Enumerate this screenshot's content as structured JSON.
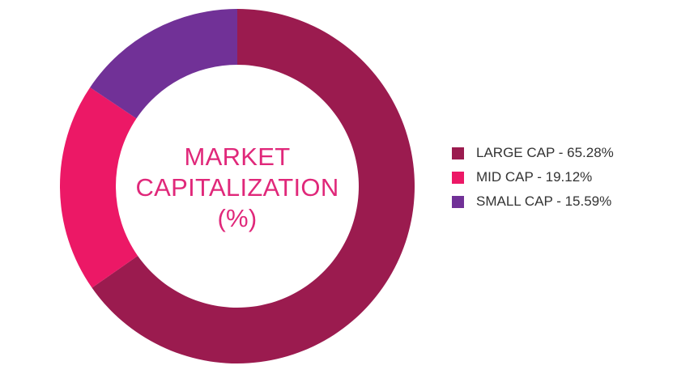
{
  "chart_data": {
    "type": "pie",
    "title": "MARKET CAPITALIZATION (%)",
    "title_lines": [
      "MARKET",
      "CAPITALIZATION",
      "(%)"
    ],
    "legend_position": "right",
    "series": [
      {
        "name": "LARGE CAP",
        "value": 65.28,
        "color": "#9b1b4f",
        "label": "LARGE CAP - 65.28%"
      },
      {
        "name": "MID CAP",
        "value": 19.12,
        "color": "#ec1866",
        "label": "MID CAP - 19.12%"
      },
      {
        "name": "SMALL CAP",
        "value": 15.59,
        "color": "#713197",
        "label": "SMALL CAP - 15.59%"
      }
    ]
  }
}
